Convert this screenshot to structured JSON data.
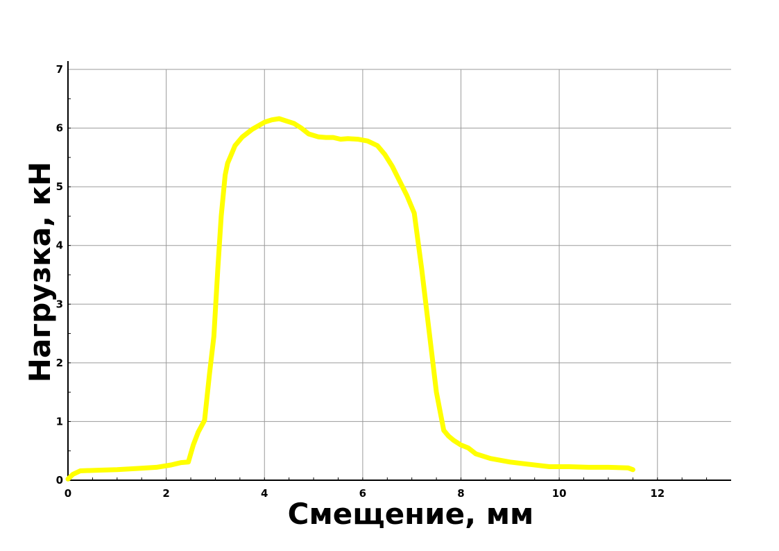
{
  "chart_data": {
    "type": "line",
    "title": "",
    "xlabel": "Смещение, мм",
    "ylabel": "Нагрузка, кН",
    "xlim": [
      0,
      13.5
    ],
    "ylim": [
      0,
      7
    ],
    "xticks": [
      0,
      2,
      4,
      6,
      8,
      10,
      12
    ],
    "yticks": [
      0,
      1,
      2,
      3,
      4,
      5,
      6,
      7
    ],
    "grid": true,
    "series": [
      {
        "color": "#ffff00",
        "x": [
          0.0,
          0.1,
          0.25,
          0.6,
          1.0,
          1.4,
          1.8,
          2.1,
          2.3,
          2.45,
          2.55,
          2.65,
          2.78,
          2.88,
          2.97,
          3.05,
          3.12,
          3.2,
          3.25,
          3.3,
          3.4,
          3.55,
          3.75,
          4.0,
          4.15,
          4.3,
          4.45,
          4.6,
          4.75,
          4.9,
          5.1,
          5.25,
          5.4,
          5.55,
          5.7,
          5.9,
          6.1,
          6.3,
          6.45,
          6.6,
          6.75,
          6.9,
          7.05,
          7.2,
          7.35,
          7.5,
          7.65,
          7.75,
          7.85,
          8.0,
          8.15,
          8.3,
          8.6,
          9.0,
          9.4,
          9.8,
          10.2,
          10.6,
          11.0,
          11.4,
          11.5
        ],
        "y": [
          0.02,
          0.1,
          0.16,
          0.17,
          0.18,
          0.2,
          0.22,
          0.26,
          0.3,
          0.31,
          0.6,
          0.82,
          1.02,
          1.8,
          2.45,
          3.6,
          4.5,
          5.2,
          5.4,
          5.5,
          5.7,
          5.85,
          5.98,
          6.1,
          6.14,
          6.16,
          6.12,
          6.08,
          6.0,
          5.9,
          5.85,
          5.84,
          5.84,
          5.81,
          5.82,
          5.81,
          5.78,
          5.7,
          5.55,
          5.35,
          5.1,
          4.85,
          4.55,
          3.6,
          2.55,
          1.5,
          0.85,
          0.75,
          0.68,
          0.6,
          0.55,
          0.45,
          0.37,
          0.31,
          0.27,
          0.23,
          0.23,
          0.22,
          0.22,
          0.21,
          0.18
        ]
      }
    ]
  }
}
